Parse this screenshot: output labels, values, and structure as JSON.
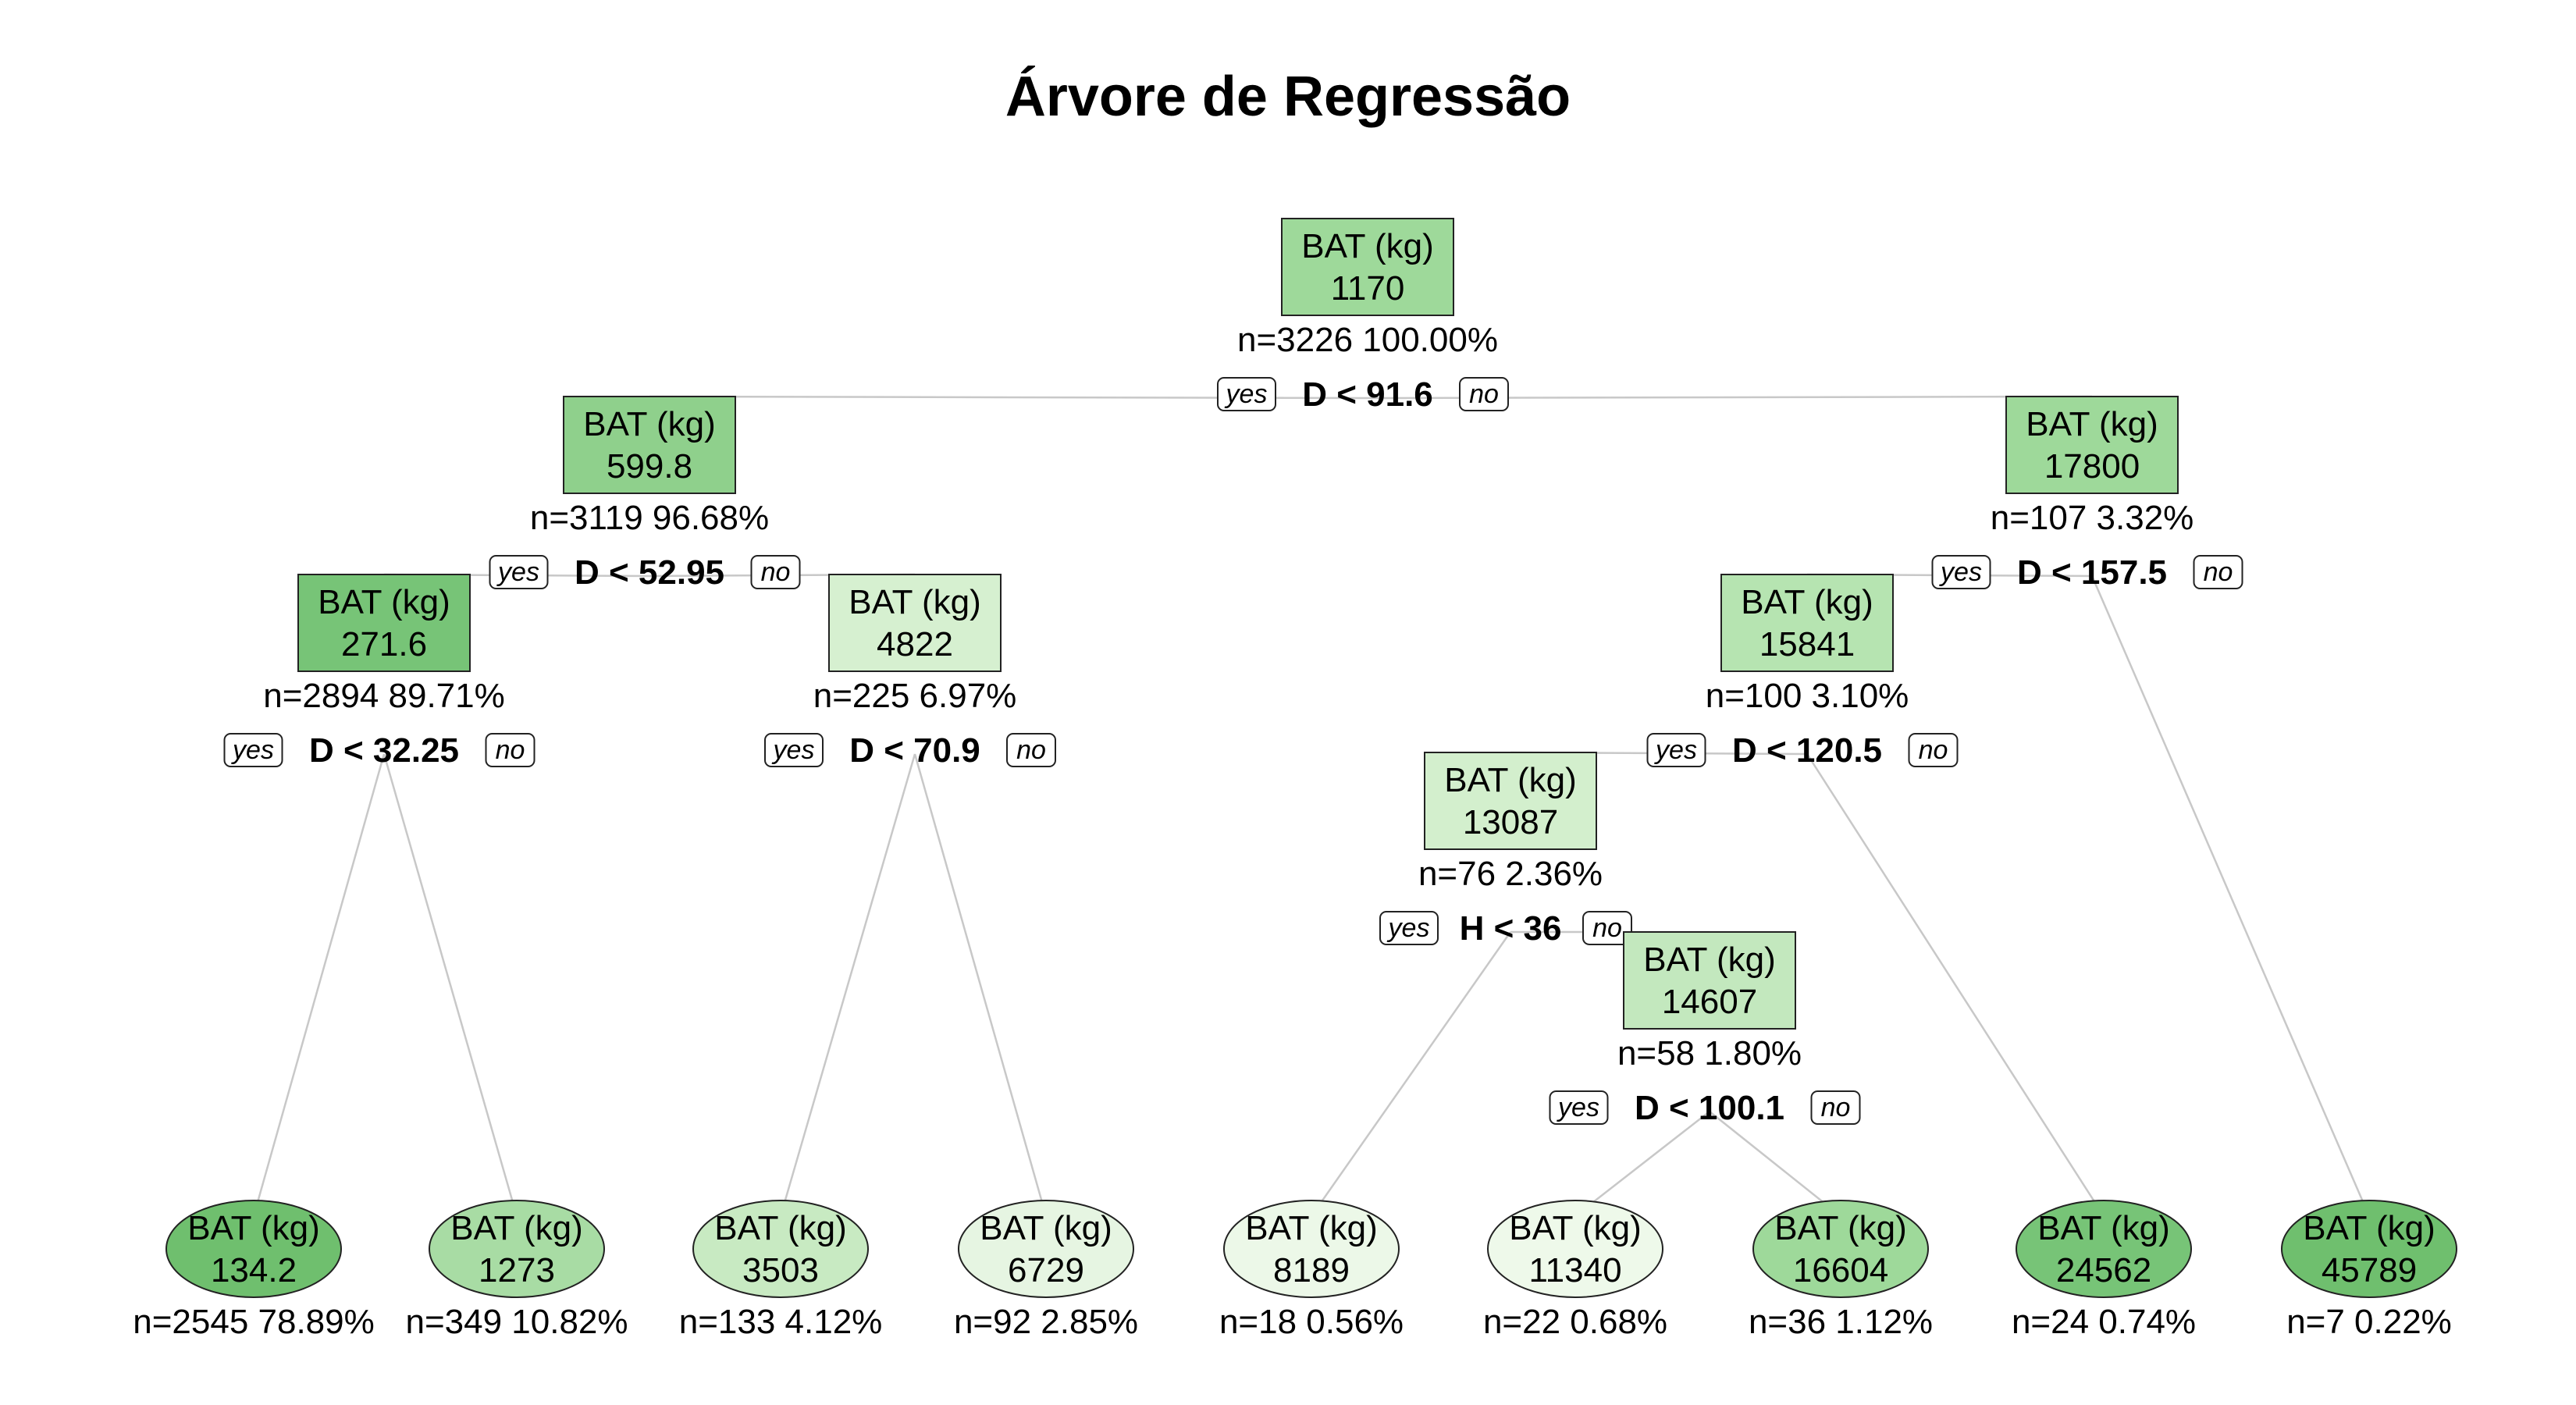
{
  "title": "Árvore de Regressão",
  "labels": {
    "yes": "yes",
    "no": "no",
    "var": "BAT (kg)"
  },
  "nodes": [
    {
      "id": "n1",
      "value": "1170",
      "stats": "n=3226  100.00%",
      "condition": "D < 91.6",
      "fill": "#9ed99a",
      "leaf": false
    },
    {
      "id": "n2",
      "value": "599.8",
      "stats": "n=3119  96.68%",
      "condition": "D < 52.95",
      "fill": "#8fd08c",
      "leaf": false
    },
    {
      "id": "n3",
      "value": "17800",
      "stats": "n=107  3.32%",
      "condition": "D < 157.5",
      "fill": "#9ed99a",
      "leaf": false
    },
    {
      "id": "n4",
      "value": "271.6",
      "stats": "n=2894  89.71%",
      "condition": "D < 32.25",
      "fill": "#77c477",
      "leaf": false
    },
    {
      "id": "n5",
      "value": "4822",
      "stats": "n=225  6.97%",
      "condition": "D < 70.9",
      "fill": "#d6f0d0",
      "leaf": false
    },
    {
      "id": "n6",
      "value": "15841",
      "stats": "n=100  3.10%",
      "condition": "D < 120.5",
      "fill": "#b6e4b1",
      "leaf": false
    },
    {
      "id": "n7",
      "value": "13087",
      "stats": "n=76  2.36%",
      "condition": "H < 36",
      "fill": "#d3efcd",
      "leaf": false
    },
    {
      "id": "n8",
      "value": "14607",
      "stats": "n=58  1.80%",
      "condition": "D < 100.1",
      "fill": "#c3e8be",
      "leaf": false
    },
    {
      "id": "l1",
      "value": "134.2",
      "stats": "n=2545  78.89%",
      "fill": "#6fbf6e",
      "leaf": true
    },
    {
      "id": "l2",
      "value": "1273",
      "stats": "n=349  10.82%",
      "fill": "#a8dca4",
      "leaf": true
    },
    {
      "id": "l3",
      "value": "3503",
      "stats": "n=133  4.12%",
      "fill": "#c8eac2",
      "leaf": true
    },
    {
      "id": "l4",
      "value": "6729",
      "stats": "n=92  2.85%",
      "fill": "#e6f5e2",
      "leaf": true
    },
    {
      "id": "l5",
      "value": "8189",
      "stats": "n=18  0.56%",
      "fill": "#ecf8e8",
      "leaf": true
    },
    {
      "id": "l6",
      "value": "11340",
      "stats": "n=22  0.68%",
      "fill": "#eef9ea",
      "leaf": true
    },
    {
      "id": "l7",
      "value": "16604",
      "stats": "n=36  1.12%",
      "fill": "#9ed99a",
      "leaf": true
    },
    {
      "id": "l8",
      "value": "24562",
      "stats": "n=24  0.74%",
      "fill": "#77c477",
      "leaf": true
    },
    {
      "id": "l9",
      "value": "45789",
      "stats": "n=7  0.22%",
      "fill": "#6fbf6e",
      "leaf": true
    }
  ],
  "edges": [
    [
      "n1",
      "n2"
    ],
    [
      "n1",
      "n3"
    ],
    [
      "n2",
      "n4"
    ],
    [
      "n2",
      "n5"
    ],
    [
      "n3",
      "n6"
    ],
    [
      "n3",
      "l9"
    ],
    [
      "n4",
      "l1"
    ],
    [
      "n4",
      "l2"
    ],
    [
      "n5",
      "l3"
    ],
    [
      "n5",
      "l4"
    ],
    [
      "n6",
      "n7"
    ],
    [
      "n6",
      "l8"
    ],
    [
      "n7",
      "l5"
    ],
    [
      "n7",
      "n8"
    ],
    [
      "n8",
      "l6"
    ],
    [
      "n8",
      "l7"
    ]
  ]
}
